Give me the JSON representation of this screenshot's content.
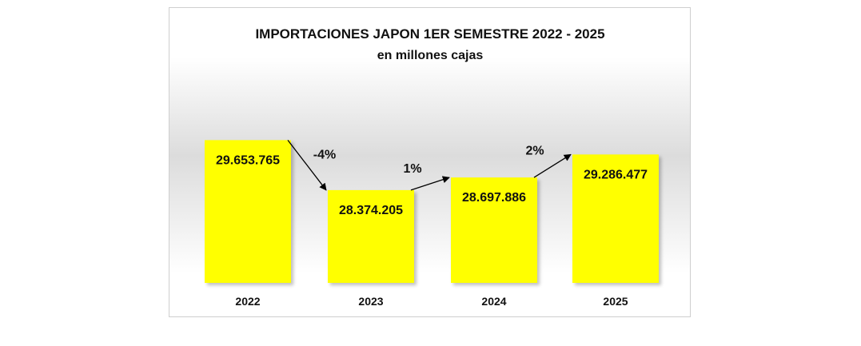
{
  "chart_data": {
    "type": "bar",
    "title": "IMPORTACIONES JAPON 1ER SEMESTRE 2022 - 2025",
    "subtitle": "en millones cajas",
    "categories": [
      "2022",
      "2023",
      "2024",
      "2025"
    ],
    "values": [
      29653765,
      28374205,
      28697886,
      29286477
    ],
    "data_labels": [
      "29.653.765",
      "28.374.205",
      "28.697.886",
      "29.286.477"
    ],
    "changes": [
      "-4%",
      "1%",
      "2%"
    ],
    "bar_color": "#ffff00",
    "ylim": [
      26000000,
      30500000
    ],
    "grid": false,
    "legend": "none"
  }
}
